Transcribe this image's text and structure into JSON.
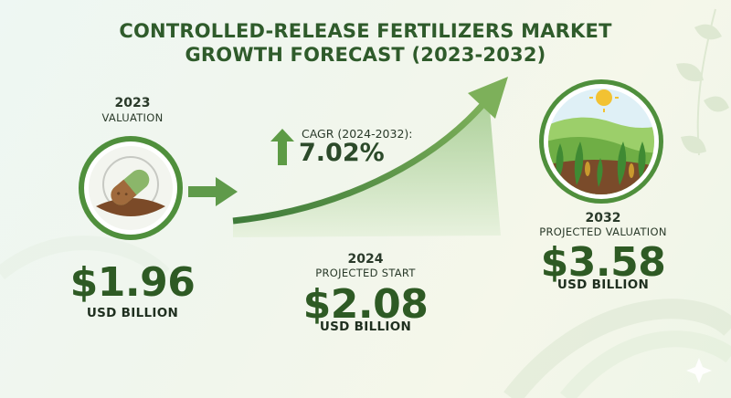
{
  "title": {
    "line1": "CONTROLLED-RELEASE FERTILIZERS MARKET",
    "line2": "GROWTH FORECAST (2023-2032)"
  },
  "left": {
    "year": "2023",
    "label": "VALUATION",
    "value": "$1.96",
    "unit": "USD BILLION",
    "icon": "capsule-soil-icon"
  },
  "middle": {
    "cagr_label": "CAGR (2024-2032):",
    "cagr_value": "7.02%",
    "year": "2024",
    "label": "PROJECTED START",
    "value": "$2.08",
    "unit": "USD BILLION"
  },
  "right": {
    "year": "2032",
    "label": "PROJECTED VALUATION",
    "value": "$3.58",
    "unit": "USD BILLION",
    "icon": "farm-field-sun-icon"
  },
  "colors": {
    "title": "#2f5b2b",
    "value": "#2e5a24",
    "accent": "#5f9a4a",
    "circle": "#4f8f3c"
  }
}
